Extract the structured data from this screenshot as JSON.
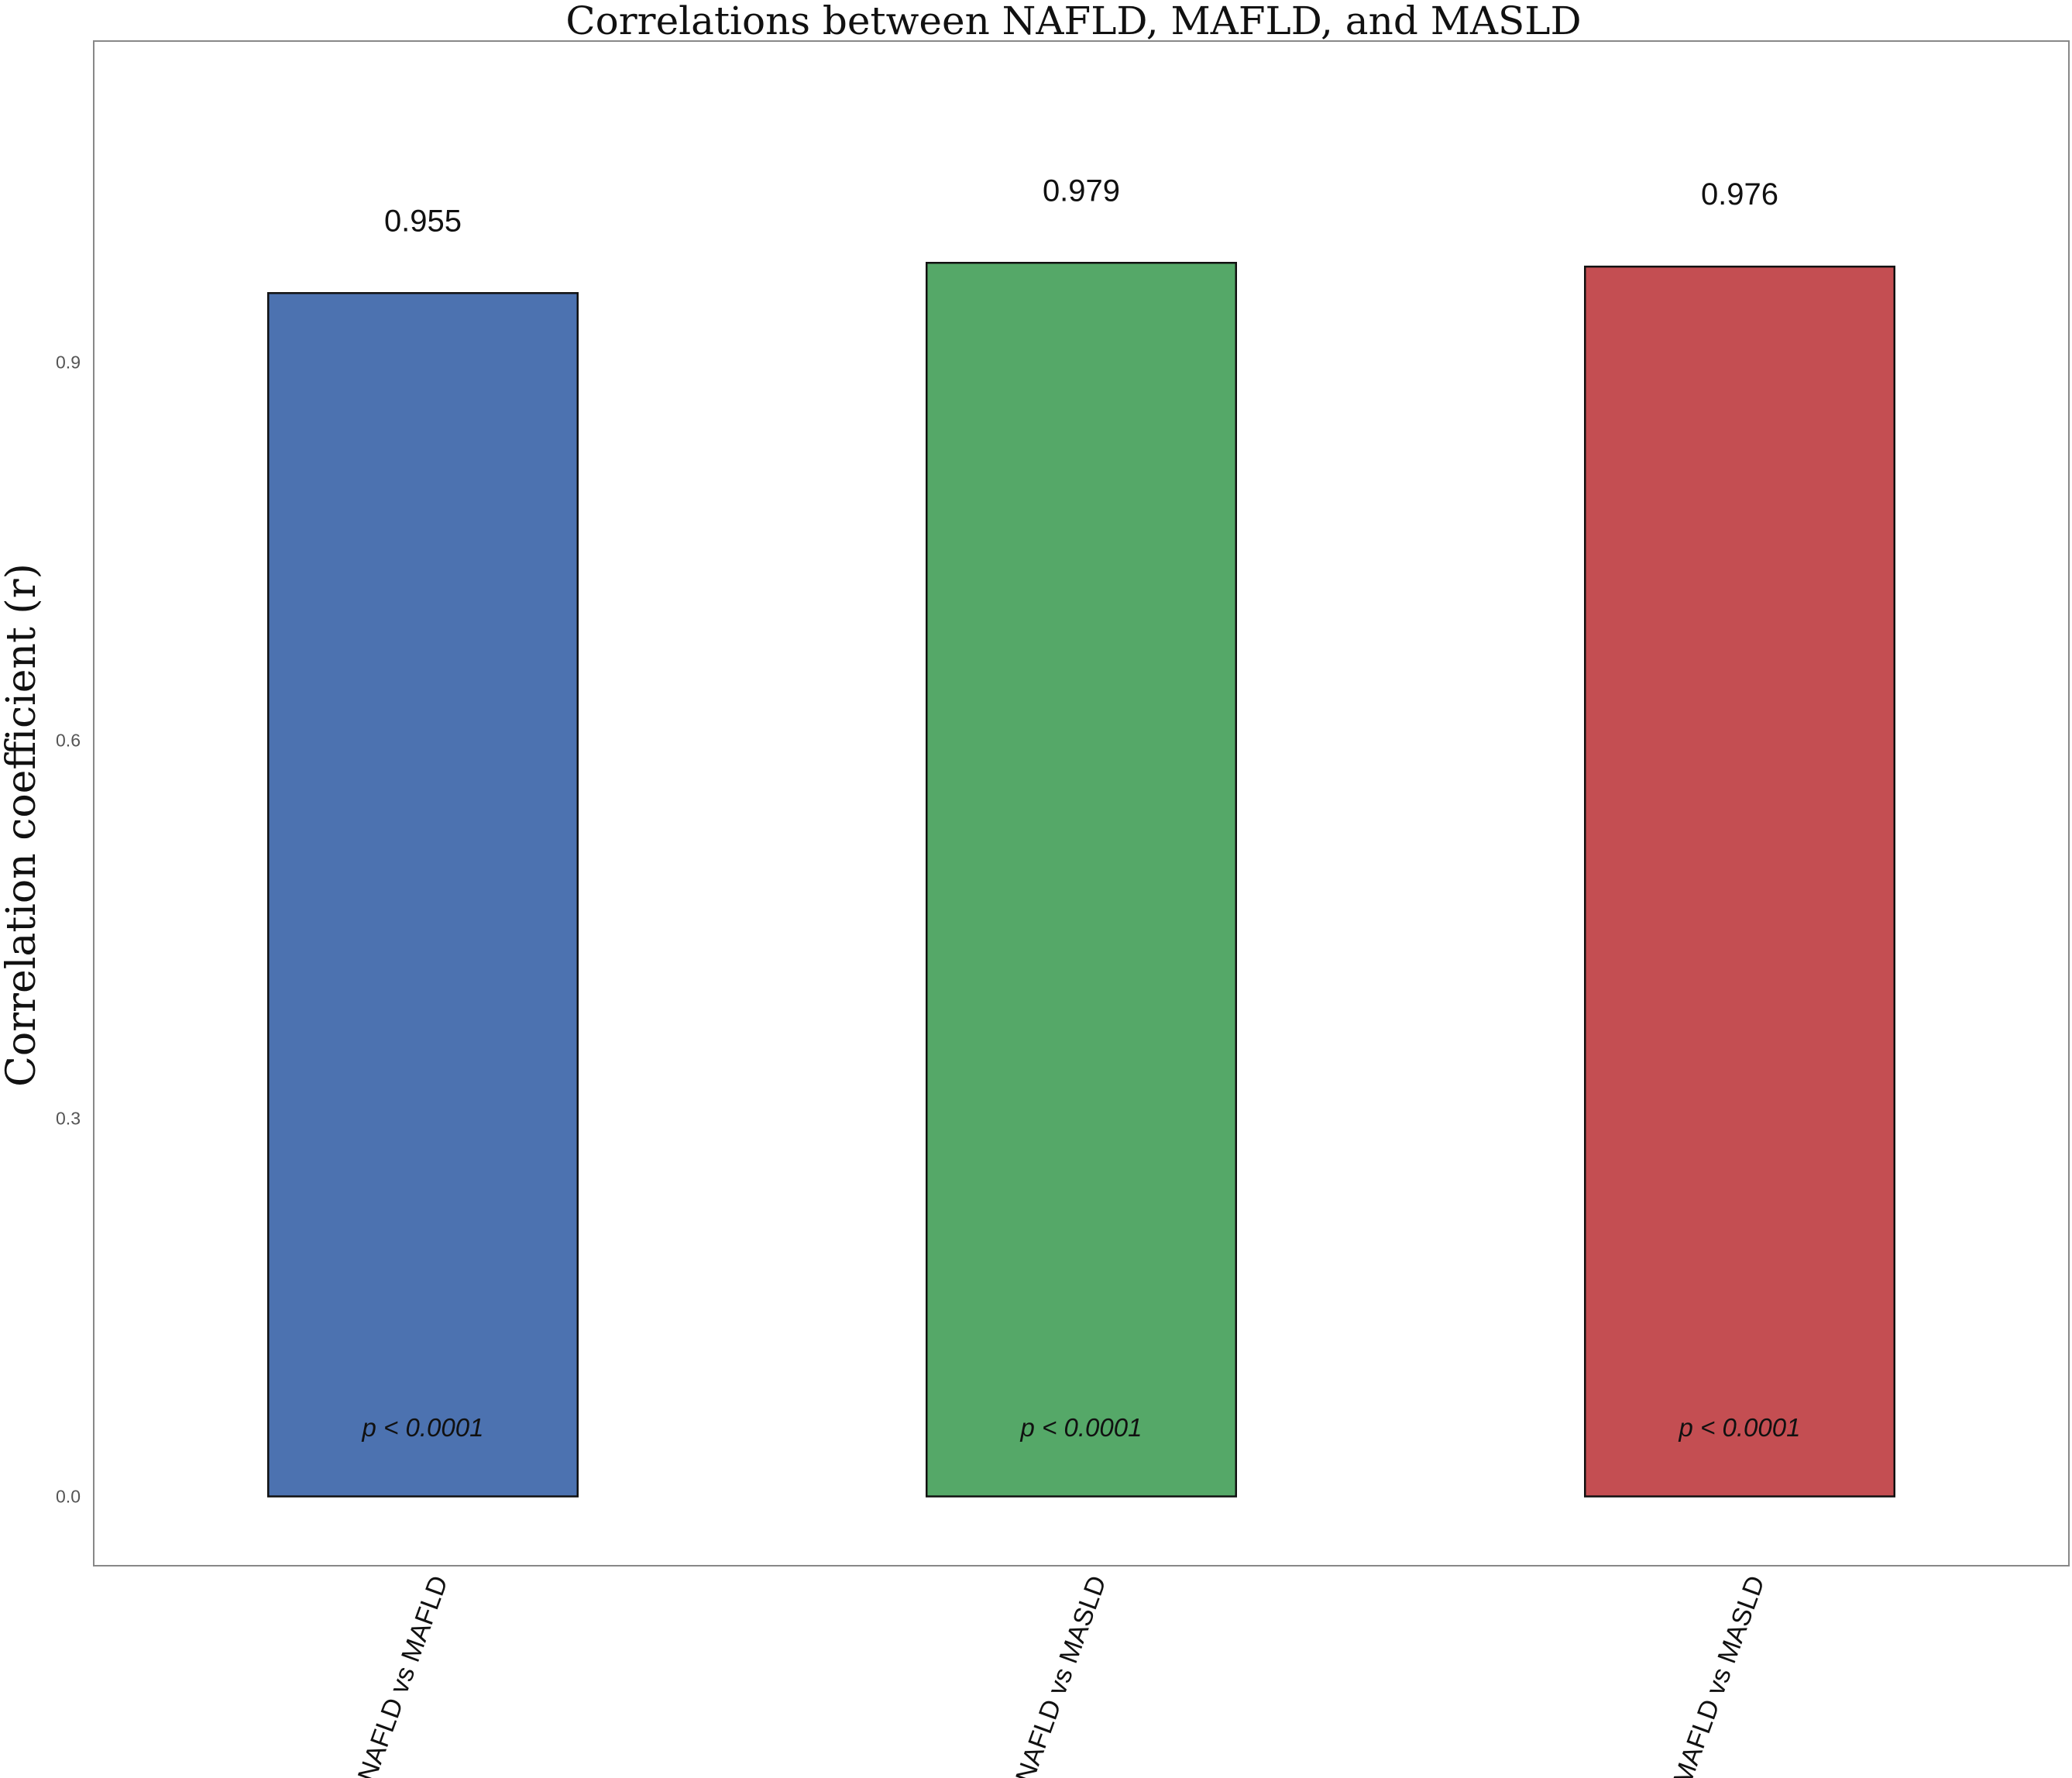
{
  "chart_data": {
    "type": "bar",
    "title": "Correlations between NAFLD, MAFLD, and MASLD",
    "xlabel": "",
    "ylabel": "Correlation coefficient (r)",
    "ylim": [
      -0.055,
      1.155
    ],
    "yticks": [
      "0.0",
      "0.3",
      "0.6",
      "0.9"
    ],
    "ytick_values": [
      0.0,
      0.3,
      0.6,
      0.9
    ],
    "grid": false,
    "categories": [
      "NAFLD vs MAFLD",
      "NAFLD vs MASLD",
      "MAFLD vs MASLD"
    ],
    "values": [
      0.955,
      0.979,
      0.976
    ],
    "value_labels": [
      "0.955",
      "0.979",
      "0.976"
    ],
    "p_labels": [
      "p < 0.0001",
      "p < 0.0001",
      "p < 0.0001"
    ],
    "colors": [
      "#4C72B0",
      "#55A868",
      "#C44E52"
    ]
  }
}
